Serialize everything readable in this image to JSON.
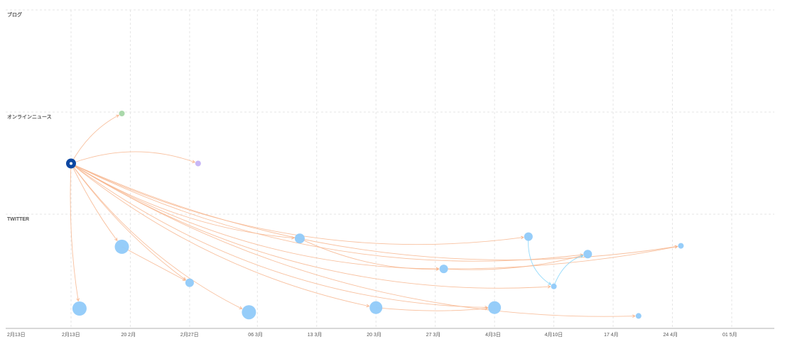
{
  "chart_data": {
    "type": "scatter",
    "title": "",
    "xlabel": "",
    "ylabel": "",
    "x_start_label": "2月13日",
    "x_ticks": [
      "2月13日",
      "20 2月",
      "2月27日",
      "06 3月",
      "13 3月",
      "20 3月",
      "27 3月",
      "4月3日",
      "4月10日",
      "17 4月",
      "24 4月",
      "01 5月"
    ],
    "x_tick_dates": [
      "2020-02-13",
      "2020-02-20",
      "2020-02-27",
      "2020-03-06",
      "2020-03-13",
      "2020-03-20",
      "2020-03-27",
      "2020-04-03",
      "2020-04-10",
      "2020-04-17",
      "2020-04-24",
      "2020-05-01"
    ],
    "x_range": [
      "2020-02-12",
      "2020-05-07"
    ],
    "bands": [
      "ブログ",
      "オンラインニュース",
      "TWITTER"
    ],
    "grid": true,
    "colors": {
      "source": "#0d47a1",
      "twitter": "#90caf9",
      "online_news_a": "#a5d6a7",
      "online_news_b": "#c5b3f5",
      "edge_orange": "#f7b58d",
      "edge_blue": "#81d4fa",
      "grid": "#e6e6e6"
    },
    "nodes": [
      {
        "id": "src",
        "band": "オンラインニュース",
        "date": "2020-02-13",
        "level": 0.49,
        "size": 3,
        "color": "#0d47a1"
      },
      {
        "id": "n1",
        "band": "オンラインニュース",
        "date": "2020-02-19",
        "level": 0.02,
        "size": 1,
        "color": "#a5d6a7"
      },
      {
        "id": "n2",
        "band": "オンラインニュース",
        "date": "2020-02-28",
        "level": 0.49,
        "size": 1,
        "color": "#c5b3f5"
      },
      {
        "id": "t1",
        "band": "TWITTER",
        "date": "2020-02-14",
        "level": 0.9,
        "size": 5,
        "color": "#90caf9"
      },
      {
        "id": "t2",
        "band": "TWITTER",
        "date": "2020-02-19",
        "level": 0.23,
        "size": 5,
        "color": "#90caf9"
      },
      {
        "id": "t3",
        "band": "TWITTER",
        "date": "2020-02-27",
        "level": 0.62,
        "size": 2,
        "color": "#90caf9"
      },
      {
        "id": "t4",
        "band": "TWITTER",
        "date": "2020-03-05",
        "level": 0.94,
        "size": 5,
        "color": "#90caf9"
      },
      {
        "id": "t5",
        "band": "TWITTER",
        "date": "2020-03-11",
        "level": 0.14,
        "size": 3,
        "color": "#90caf9"
      },
      {
        "id": "t6",
        "band": "TWITTER",
        "date": "2020-03-20",
        "level": 0.89,
        "size": 4,
        "color": "#90caf9"
      },
      {
        "id": "t7",
        "band": "TWITTER",
        "date": "2020-03-28",
        "level": 0.47,
        "size": 2,
        "color": "#90caf9"
      },
      {
        "id": "t8",
        "band": "TWITTER",
        "date": "2020-04-03",
        "level": 0.89,
        "size": 4,
        "color": "#90caf9"
      },
      {
        "id": "t9",
        "band": "TWITTER",
        "date": "2020-04-07",
        "level": 0.12,
        "size": 2,
        "color": "#90caf9"
      },
      {
        "id": "t10",
        "band": "TWITTER",
        "date": "2020-04-10",
        "level": 0.66,
        "size": 1,
        "color": "#90caf9"
      },
      {
        "id": "t11",
        "band": "TWITTER",
        "date": "2020-04-14",
        "level": 0.31,
        "size": 2,
        "color": "#90caf9"
      },
      {
        "id": "t12",
        "band": "TWITTER",
        "date": "2020-04-20",
        "level": 0.98,
        "size": 1,
        "color": "#90caf9"
      },
      {
        "id": "t13",
        "band": "TWITTER",
        "date": "2020-04-25",
        "level": 0.22,
        "size": 1,
        "color": "#90caf9"
      }
    ],
    "edges": [
      {
        "from": "src",
        "to": "n1",
        "color": "#f7b58d",
        "bend": -0.15
      },
      {
        "from": "src",
        "to": "n2",
        "color": "#f7b58d",
        "bend": -0.18
      },
      {
        "from": "src",
        "to": "t1",
        "color": "#f7b58d",
        "bend": 0.05
      },
      {
        "from": "src",
        "to": "t2",
        "color": "#f7b58d",
        "bend": 0.05
      },
      {
        "from": "src",
        "to": "t3",
        "color": "#f7b58d",
        "bend": 0.08
      },
      {
        "from": "src",
        "to": "t4",
        "color": "#f7b58d",
        "bend": 0.12
      },
      {
        "from": "src",
        "to": "t5",
        "color": "#f7b58d",
        "bend": 0.12
      },
      {
        "from": "src",
        "to": "t6",
        "color": "#f7b58d",
        "bend": 0.12
      },
      {
        "from": "src",
        "to": "t7",
        "color": "#f7b58d",
        "bend": 0.14
      },
      {
        "from": "src",
        "to": "t8",
        "color": "#f7b58d",
        "bend": 0.16
      },
      {
        "from": "src",
        "to": "t9",
        "color": "#f7b58d",
        "bend": 0.15
      },
      {
        "from": "src",
        "to": "t10",
        "color": "#f7b58d",
        "bend": 0.16
      },
      {
        "from": "src",
        "to": "t11",
        "color": "#f7b58d",
        "bend": 0.15
      },
      {
        "from": "src",
        "to": "t12",
        "color": "#f7b58d",
        "bend": 0.15
      },
      {
        "from": "src",
        "to": "t13",
        "color": "#f7b58d",
        "bend": 0.15
      },
      {
        "from": "t2",
        "to": "t3",
        "color": "#f7b58d",
        "bend": 0.0
      },
      {
        "from": "t5",
        "to": "t7",
        "color": "#f7b58d",
        "bend": 0.12
      },
      {
        "from": "t7",
        "to": "t13",
        "color": "#f7b58d",
        "bend": 0.05
      },
      {
        "from": "t6",
        "to": "t8",
        "color": "#f7b58d",
        "bend": 0.05
      },
      {
        "from": "t7",
        "to": "t11",
        "color": "#f7b58d",
        "bend": 0.08
      },
      {
        "from": "t9",
        "to": "t10",
        "color": "#81d4fa",
        "bend": 0.3
      },
      {
        "from": "t10",
        "to": "t11",
        "color": "#81d4fa",
        "bend": -0.25
      }
    ]
  }
}
